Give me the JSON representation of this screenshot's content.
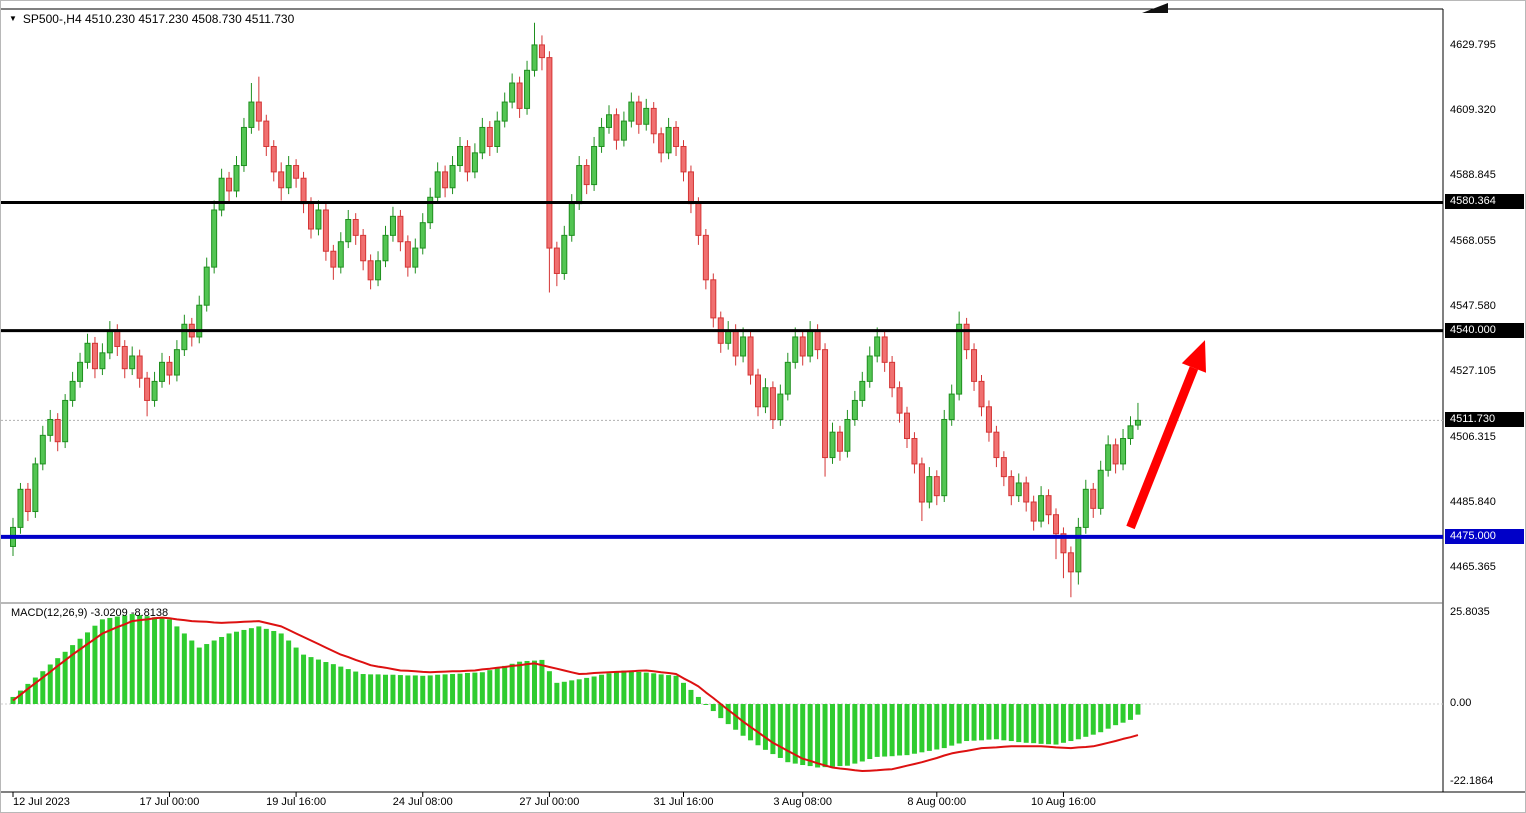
{
  "header": {
    "dropdown_glyph": "▼",
    "title": "SP500-,H4 4510.230 4517.230 4508.730 4511.730"
  },
  "macd_panel": {
    "label": "MACD(12,26,9) -3.0209 -8.8138",
    "ticks": [
      {
        "label": "25.8035",
        "value": 25.8035
      },
      {
        "label": "0.00",
        "value": 0
      },
      {
        "label": "-22.1864",
        "value": -22.1864
      }
    ]
  },
  "price_axis": {
    "ticks": [
      "4629.795",
      "4609.320",
      "4588.845",
      "4568.055",
      "4547.580",
      "4527.105",
      "4506.315",
      "4485.840",
      "4465.365"
    ]
  },
  "time_axis": {
    "labels": [
      {
        "text": "12 Jul 2023",
        "index": 0
      },
      {
        "text": "17 Jul 00:00",
        "index": 21
      },
      {
        "text": "19 Jul 16:00",
        "index": 38
      },
      {
        "text": "24 Jul 08:00",
        "index": 55
      },
      {
        "text": "27 Jul 00:00",
        "index": 72
      },
      {
        "text": "31 Jul 16:00",
        "index": 90
      },
      {
        "text": "3 Aug 08:00",
        "index": 106
      },
      {
        "text": "8 Aug 00:00",
        "index": 124
      },
      {
        "text": "10 Aug 16:00",
        "index": 141
      }
    ]
  },
  "colors": {
    "bull_fill": "#53C553",
    "bull_stroke": "#1F8F1F",
    "bear_fill": "#F07070",
    "bear_stroke": "#D43535",
    "macd_bar": "#2FCC2F",
    "macd_signal": "#DD1111",
    "arrow": "#FF0000",
    "tag_text": "#FFFFFF",
    "level_black": "#000000",
    "level_blue": "#0000C8"
  },
  "chart_data": {
    "type": "candlestick",
    "symbol": "SP500-",
    "timeframe": "H4",
    "title": "SP500-,H4",
    "ohlc_last": {
      "open": 4510.23,
      "high": 4517.23,
      "low": 4508.73,
      "close": 4511.73
    },
    "y_range": {
      "min": 4454.5,
      "max": 4641.0
    },
    "grid": false,
    "candles": [
      [
        4472,
        4481,
        4469,
        4478
      ],
      [
        4478,
        4492,
        4476,
        4490
      ],
      [
        4490,
        4492,
        4480,
        4483
      ],
      [
        4483,
        4500,
        4481,
        4498
      ],
      [
        4498,
        4510,
        4496,
        4507
      ],
      [
        4507,
        4515,
        4505,
        4512
      ],
      [
        4512,
        4514,
        4502,
        4505
      ],
      [
        4505,
        4520,
        4503,
        4518
      ],
      [
        4518,
        4527,
        4516,
        4524
      ],
      [
        4524,
        4533,
        4522,
        4530
      ],
      [
        4530,
        4539,
        4528,
        4536
      ],
      [
        4536,
        4538,
        4525,
        4528
      ],
      [
        4528,
        4536,
        4526,
        4533
      ],
      [
        4533,
        4543,
        4531,
        4540
      ],
      [
        4540,
        4542,
        4532,
        4535
      ],
      [
        4535,
        4537,
        4525,
        4528
      ],
      [
        4528,
        4535,
        4526,
        4532
      ],
      [
        4532,
        4534,
        4522,
        4525
      ],
      [
        4525,
        4527,
        4513,
        4518
      ],
      [
        4518,
        4527,
        4516,
        4524
      ],
      [
        4524,
        4533,
        4522,
        4530
      ],
      [
        4530,
        4532,
        4523,
        4526
      ],
      [
        4526,
        4537,
        4524,
        4534
      ],
      [
        4534,
        4545,
        4532,
        4542
      ],
      [
        4542,
        4544,
        4535,
        4538
      ],
      [
        4538,
        4551,
        4536,
        4548
      ],
      [
        4548,
        4563,
        4546,
        4560
      ],
      [
        4560,
        4581,
        4558,
        4578
      ],
      [
        4578,
        4591,
        4576,
        4588
      ],
      [
        4588,
        4590,
        4580,
        4584
      ],
      [
        4584,
        4595,
        4582,
        4592
      ],
      [
        4592,
        4607,
        4590,
        4604
      ],
      [
        4604,
        4618,
        4602,
        4612
      ],
      [
        4612,
        4620,
        4603,
        4606
      ],
      [
        4606,
        4608,
        4595,
        4598
      ],
      [
        4598,
        4600,
        4587,
        4590
      ],
      [
        4590,
        4593,
        4581,
        4585
      ],
      [
        4585,
        4595,
        4583,
        4592
      ],
      [
        4592,
        4594,
        4585,
        4588
      ],
      [
        4588,
        4590,
        4577,
        4580
      ],
      [
        4580,
        4582,
        4569,
        4572
      ],
      [
        4572,
        4581,
        4570,
        4578
      ],
      [
        4578,
        4580,
        4562,
        4565
      ],
      [
        4565,
        4567,
        4556,
        4560
      ],
      [
        4560,
        4571,
        4558,
        4568
      ],
      [
        4568,
        4578,
        4566,
        4575
      ],
      [
        4575,
        4577,
        4567,
        4570
      ],
      [
        4570,
        4572,
        4559,
        4562
      ],
      [
        4562,
        4564,
        4553,
        4556
      ],
      [
        4556,
        4565,
        4554,
        4562
      ],
      [
        4562,
        4573,
        4560,
        4570
      ],
      [
        4570,
        4579,
        4568,
        4576
      ],
      [
        4576,
        4578,
        4565,
        4568
      ],
      [
        4568,
        4570,
        4557,
        4560
      ],
      [
        4560,
        4569,
        4558,
        4566
      ],
      [
        4566,
        4577,
        4564,
        4574
      ],
      [
        4574,
        4585,
        4572,
        4582
      ],
      [
        4582,
        4593,
        4580,
        4590
      ],
      [
        4590,
        4592,
        4582,
        4585
      ],
      [
        4585,
        4595,
        4583,
        4592
      ],
      [
        4592,
        4601,
        4590,
        4598
      ],
      [
        4598,
        4600,
        4587,
        4590
      ],
      [
        4590,
        4599,
        4588,
        4596
      ],
      [
        4596,
        4607,
        4594,
        4604
      ],
      [
        4604,
        4606,
        4595,
        4598
      ],
      [
        4598,
        4609,
        4596,
        4606
      ],
      [
        4606,
        4615,
        4604,
        4612
      ],
      [
        4612,
        4621,
        4610,
        4618
      ],
      [
        4618,
        4620,
        4607,
        4610
      ],
      [
        4610,
        4625,
        4608,
        4622
      ],
      [
        4622,
        4637,
        4620,
        4630
      ],
      [
        4630,
        4633,
        4622,
        4626
      ],
      [
        4626,
        4628,
        4552,
        4566
      ],
      [
        4566,
        4568,
        4554,
        4558
      ],
      [
        4558,
        4573,
        4556,
        4570
      ],
      [
        4570,
        4583,
        4568,
        4580
      ],
      [
        4580,
        4595,
        4578,
        4592
      ],
      [
        4592,
        4594,
        4583,
        4586
      ],
      [
        4586,
        4601,
        4584,
        4598
      ],
      [
        4598,
        4607,
        4596,
        4604
      ],
      [
        4604,
        4611,
        4602,
        4608
      ],
      [
        4608,
        4610,
        4597,
        4600
      ],
      [
        4600,
        4609,
        4598,
        4606
      ],
      [
        4606,
        4615,
        4604,
        4612
      ],
      [
        4612,
        4614,
        4602,
        4605
      ],
      [
        4605,
        4613,
        4603,
        4610
      ],
      [
        4610,
        4612,
        4599,
        4602
      ],
      [
        4602,
        4604,
        4593,
        4596
      ],
      [
        4596,
        4607,
        4594,
        4604
      ],
      [
        4604,
        4606,
        4595,
        4598
      ],
      [
        4598,
        4600,
        4587,
        4590
      ],
      [
        4590,
        4592,
        4577,
        4580
      ],
      [
        4580,
        4582,
        4567,
        4570
      ],
      [
        4570,
        4572,
        4553,
        4556
      ],
      [
        4556,
        4558,
        4541,
        4544
      ],
      [
        4544,
        4546,
        4533,
        4536
      ],
      [
        4536,
        4543,
        4534,
        4540
      ],
      [
        4540,
        4542,
        4529,
        4532
      ],
      [
        4532,
        4541,
        4530,
        4538
      ],
      [
        4538,
        4540,
        4523,
        4526
      ],
      [
        4526,
        4528,
        4513,
        4516
      ],
      [
        4516,
        4525,
        4514,
        4522
      ],
      [
        4522,
        4524,
        4509,
        4512
      ],
      [
        4512,
        4523,
        4510,
        4520
      ],
      [
        4520,
        4533,
        4518,
        4530
      ],
      [
        4530,
        4541,
        4528,
        4538
      ],
      [
        4538,
        4540,
        4529,
        4532
      ],
      [
        4532,
        4543,
        4530,
        4540
      ],
      [
        4540,
        4542,
        4531,
        4534
      ],
      [
        4534,
        4536,
        4494,
        4500
      ],
      [
        4500,
        4511,
        4498,
        4508
      ],
      [
        4508,
        4510,
        4499,
        4502
      ],
      [
        4502,
        4515,
        4500,
        4512
      ],
      [
        4512,
        4521,
        4510,
        4518
      ],
      [
        4518,
        4527,
        4516,
        4524
      ],
      [
        4524,
        4535,
        4522,
        4532
      ],
      [
        4532,
        4541,
        4530,
        4538
      ],
      [
        4538,
        4540,
        4527,
        4530
      ],
      [
        4530,
        4532,
        4519,
        4522
      ],
      [
        4522,
        4524,
        4511,
        4514
      ],
      [
        4514,
        4516,
        4503,
        4506
      ],
      [
        4506,
        4508,
        4495,
        4498
      ],
      [
        4498,
        4500,
        4480,
        4486
      ],
      [
        4486,
        4497,
        4484,
        4494
      ],
      [
        4494,
        4496,
        4485,
        4488
      ],
      [
        4488,
        4515,
        4486,
        4512
      ],
      [
        4512,
        4523,
        4510,
        4520
      ],
      [
        4520,
        4546,
        4518,
        4542
      ],
      [
        4542,
        4544,
        4531,
        4534
      ],
      [
        4534,
        4536,
        4521,
        4524
      ],
      [
        4524,
        4526,
        4513,
        4516
      ],
      [
        4516,
        4518,
        4505,
        4508
      ],
      [
        4508,
        4510,
        4497,
        4500
      ],
      [
        4500,
        4502,
        4491,
        4494
      ],
      [
        4494,
        4496,
        4485,
        4488
      ],
      [
        4488,
        4495,
        4486,
        4492
      ],
      [
        4492,
        4494,
        4483,
        4486
      ],
      [
        4486,
        4488,
        4477,
        4480
      ],
      [
        4480,
        4491,
        4478,
        4488
      ],
      [
        4488,
        4490,
        4479,
        4482
      ],
      [
        4482,
        4484,
        4468,
        4476
      ],
      [
        4476,
        4478,
        4462,
        4470
      ],
      [
        4470,
        4472,
        4456,
        4464
      ],
      [
        4464,
        4481,
        4460,
        4478
      ],
      [
        4478,
        4493,
        4476,
        4490
      ],
      [
        4490,
        4492,
        4481,
        4484
      ],
      [
        4484,
        4499,
        4482,
        4496
      ],
      [
        4496,
        4507,
        4494,
        4504
      ],
      [
        4504,
        4506,
        4495,
        4498
      ],
      [
        4498,
        4509,
        4496,
        4506
      ],
      [
        4506,
        4513,
        4504,
        4510
      ],
      [
        4510.23,
        4517.23,
        4508.73,
        4511.73
      ]
    ],
    "levels": [
      {
        "label": "4580.364",
        "price": 4580.364,
        "color": "#000000",
        "width": 3
      },
      {
        "label": "4540.000",
        "price": 4540.0,
        "color": "#000000",
        "width": 3
      },
      {
        "label": "4475.000",
        "price": 4475.0,
        "color": "#0000C8",
        "width": 4
      }
    ],
    "current_price": {
      "label": "4511.730",
      "value": 4511.73
    },
    "arrow": {
      "from": {
        "index": 150,
        "price": 4478
      },
      "to": {
        "index": 160,
        "price": 4537
      },
      "color": "#FF0000"
    },
    "macd": {
      "type": "histogram+line",
      "params": [
        12,
        26,
        9
      ],
      "value_main": -3.0209,
      "value_signal": -8.8138,
      "range": {
        "min": -24.9,
        "max": 28.1
      },
      "histogram": [
        2,
        3.8,
        5.7,
        7.5,
        9.3,
        11.2,
        13,
        14.8,
        16.7,
        18.5,
        20.3,
        22.2,
        24,
        24.4,
        24.8,
        25.1,
        25.5,
        25.2,
        24.9,
        24.6,
        24.3,
        24,
        22,
        20,
        18,
        16,
        17,
        18,
        19,
        20,
        20.5,
        21,
        21.5,
        22,
        21.3,
        20.7,
        20,
        18,
        16,
        14,
        13.3,
        12.6,
        11.9,
        11.3,
        10.6,
        9.9,
        9.2,
        8.5,
        8.4,
        8.4,
        8.3,
        8.3,
        8.2,
        8.1,
        8.1,
        8,
        8.1,
        8.3,
        8.4,
        8.5,
        8.6,
        8.8,
        8.9,
        9,
        9.6,
        10.2,
        10.8,
        11.4,
        12,
        12.2,
        12.3,
        12.5,
        9.3,
        6,
        6.3,
        6.7,
        7,
        7.4,
        7.8,
        8.3,
        8.7,
        9.1,
        9.5,
        9.3,
        9.1,
        8.9,
        8.7,
        8.4,
        8.2,
        8,
        6,
        4,
        2,
        0,
        -2,
        -4,
        -5.7,
        -7.3,
        -9,
        -10.3,
        -11.7,
        -13,
        -14.2,
        -15.3,
        -16.5,
        -16.9,
        -17.3,
        -17.6,
        -18,
        -17.9,
        -17.8,
        -17.6,
        -17.5,
        -16.9,
        -16.3,
        -15.6,
        -15,
        -14.9,
        -14.8,
        -14.6,
        -14.5,
        -14.1,
        -13.7,
        -13.3,
        -12.9,
        -12.5,
        -11.8,
        -11.2,
        -10.5,
        -10.4,
        -10.3,
        -10.1,
        -10,
        -10.3,
        -10.5,
        -10.8,
        -11,
        -11.1,
        -11.3,
        -11.4,
        -11.5,
        -11,
        -10.5,
        -10,
        -9.3,
        -8.7,
        -8,
        -7,
        -6,
        -5.3,
        -4.5,
        -3.02
      ],
      "signal": [
        1,
        2.6,
        4.3,
        5.9,
        7.5,
        9.1,
        10.8,
        12.4,
        14,
        15.5,
        17,
        18.5,
        20,
        20.9,
        21.8,
        22.6,
        23.5,
        23.8,
        24,
        24.3,
        24.5,
        24.3,
        24,
        23.8,
        23.5,
        23.4,
        23.3,
        23.1,
        23,
        23.1,
        23.2,
        23.3,
        23.4,
        23.5,
        23,
        22.5,
        22,
        21,
        20,
        19,
        18,
        17,
        16,
        15,
        14,
        13.3,
        12.5,
        11.8,
        11,
        10.6,
        10.3,
        9.9,
        9.5,
        9.4,
        9.3,
        9.1,
        9,
        9.1,
        9.2,
        9.3,
        9.3,
        9.4,
        9.5,
        9.8,
        10,
        10.3,
        10.5,
        10.8,
        11,
        11.3,
        11.5,
        11,
        10.5,
        10,
        9.5,
        9,
        8.5,
        8.6,
        8.8,
        8.9,
        9,
        9.1,
        9.2,
        9.3,
        9.4,
        9.5,
        9.3,
        9,
        8.8,
        8.5,
        7.3,
        6.2,
        5,
        3.3,
        1.7,
        0,
        -1.7,
        -3.3,
        -5,
        -6.5,
        -8,
        -9.5,
        -11,
        -12.1,
        -13.3,
        -14.4,
        -15.5,
        -16.1,
        -16.8,
        -17.4,
        -18,
        -18.3,
        -18.5,
        -18.8,
        -19,
        -18.9,
        -18.8,
        -18.6,
        -18.5,
        -18,
        -17.5,
        -17,
        -16.5,
        -15.9,
        -15.3,
        -14.6,
        -14,
        -13.6,
        -13.3,
        -12.9,
        -12.5,
        -12.4,
        -12.3,
        -12.1,
        -12,
        -12,
        -12,
        -12,
        -12,
        -12.1,
        -12.3,
        -12.4,
        -12.5,
        -12.3,
        -12.2,
        -12,
        -11.5,
        -11,
        -10.5,
        -9.9,
        -9.4,
        -8.81
      ]
    }
  }
}
